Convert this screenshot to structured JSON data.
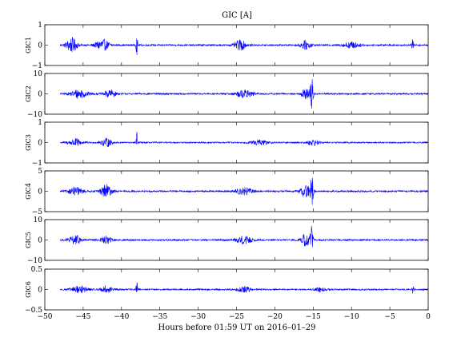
{
  "chart_data": {
    "type": "line",
    "title": "GIC [A]",
    "xlabel": "Hours before  01:59 UT on 2016–01–29",
    "xlim": [
      -50,
      0
    ],
    "xticks": [
      -50,
      -45,
      -40,
      -35,
      -30,
      -25,
      -20,
      -15,
      -10,
      -5,
      0
    ],
    "xtick_labels": [
      "−50",
      "−45",
      "−40",
      "−35",
      "−30",
      "−25",
      "−20",
      "−15",
      "−10",
      "−5",
      "0"
    ],
    "data_x_range": [
      -48,
      0
    ],
    "grid": false,
    "series_color": "#0000ff",
    "panels": [
      {
        "ylabel": "GIC1",
        "ylim": [
          -1,
          1
        ],
        "yticks": [
          -1,
          0,
          1
        ],
        "ytick_labels": [
          "−1",
          "0",
          "1"
        ],
        "noise": 0.04,
        "bursts": [
          {
            "x": -46.5,
            "width": 2.0,
            "amp": 0.35
          },
          {
            "x": -42.5,
            "width": 2.5,
            "amp": 0.28
          },
          {
            "x": -38.0,
            "width": 0.3,
            "amp": 0.45
          },
          {
            "x": -24.5,
            "width": 2.0,
            "amp": 0.25
          },
          {
            "x": -16.0,
            "width": 2.0,
            "amp": 0.2
          },
          {
            "x": -10.0,
            "width": 3.0,
            "amp": 0.15
          },
          {
            "x": -2.0,
            "width": 0.4,
            "amp": 0.3
          }
        ]
      },
      {
        "ylabel": "GIC2",
        "ylim": [
          -10,
          10
        ],
        "yticks": [
          -10,
          0,
          10
        ],
        "ytick_labels": [
          "−10",
          "0",
          "10"
        ],
        "noise": 0.4,
        "bursts": [
          {
            "x": -45.5,
            "width": 3.0,
            "amp": 2.2
          },
          {
            "x": -41.5,
            "width": 2.0,
            "amp": 2.0
          },
          {
            "x": -24.0,
            "width": 3.0,
            "amp": 1.8
          },
          {
            "x": -15.2,
            "width": 0.6,
            "amp": 8.5
          },
          {
            "x": -16.0,
            "width": 1.5,
            "amp": 2.5
          }
        ]
      },
      {
        "ylabel": "GIC3",
        "ylim": [
          -1,
          1
        ],
        "yticks": [
          -1,
          0,
          1
        ],
        "ytick_labels": [
          "−1",
          "0",
          "1"
        ],
        "noise": 0.035,
        "bursts": [
          {
            "x": -46.0,
            "width": 2.5,
            "amp": 0.18
          },
          {
            "x": -42.0,
            "width": 2.0,
            "amp": 0.2
          },
          {
            "x": -38.0,
            "width": 0.3,
            "amp": 0.55
          },
          {
            "x": -22.0,
            "width": 3.0,
            "amp": 0.12
          },
          {
            "x": -15.0,
            "width": 2.0,
            "amp": 0.15
          }
        ]
      },
      {
        "ylabel": "GIC4",
        "ylim": [
          -5,
          5
        ],
        "yticks": [
          -5,
          0,
          5
        ],
        "ytick_labels": [
          "−5",
          "0",
          "5"
        ],
        "noise": 0.2,
        "bursts": [
          {
            "x": -46.0,
            "width": 2.5,
            "amp": 0.9
          },
          {
            "x": -42.0,
            "width": 2.0,
            "amp": 1.6
          },
          {
            "x": -24.0,
            "width": 3.0,
            "amp": 0.9
          },
          {
            "x": -15.2,
            "width": 0.6,
            "amp": 4.2
          },
          {
            "x": -16.0,
            "width": 1.8,
            "amp": 1.5
          }
        ]
      },
      {
        "ylabel": "GIC5",
        "ylim": [
          -10,
          10
        ],
        "yticks": [
          -10,
          0,
          10
        ],
        "ytick_labels": [
          "−10",
          "0",
          "10"
        ],
        "noise": 0.4,
        "bursts": [
          {
            "x": -46.0,
            "width": 2.5,
            "amp": 2.0
          },
          {
            "x": -42.0,
            "width": 2.0,
            "amp": 1.8
          },
          {
            "x": -24.0,
            "width": 3.0,
            "amp": 1.8
          },
          {
            "x": -15.2,
            "width": 0.6,
            "amp": 7.5
          },
          {
            "x": -16.0,
            "width": 1.5,
            "amp": 3.0
          }
        ]
      },
      {
        "ylabel": "GIC6",
        "ylim": [
          -0.5,
          0.5
        ],
        "yticks": [
          -0.5,
          0,
          0.5
        ],
        "ytick_labels": [
          "−0.5",
          "0",
          "0.5"
        ],
        "noise": 0.018,
        "bursts": [
          {
            "x": -45.5,
            "width": 3.0,
            "amp": 0.08
          },
          {
            "x": -42.0,
            "width": 2.0,
            "amp": 0.09
          },
          {
            "x": -38.0,
            "width": 0.3,
            "amp": 0.2
          },
          {
            "x": -24.0,
            "width": 2.5,
            "amp": 0.07
          },
          {
            "x": -14.0,
            "width": 2.0,
            "amp": 0.06
          },
          {
            "x": -2.0,
            "width": 0.4,
            "amp": 0.1
          }
        ]
      }
    ]
  }
}
